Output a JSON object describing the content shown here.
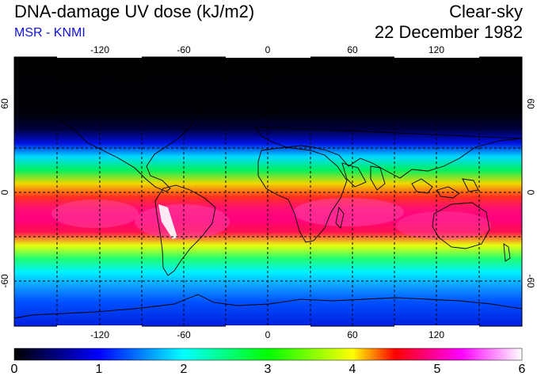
{
  "header": {
    "title": "DNA-damage UV dose (kJ/m2)",
    "source": "MSR - KNMI",
    "sky": "Clear-sky",
    "date": "22 December 1982"
  },
  "map": {
    "lon_ticks": [
      "-120",
      "-60",
      "0",
      "60",
      "120"
    ],
    "lat_ticks": [
      "60",
      "0",
      "-60"
    ]
  },
  "colorbar": {
    "labels": [
      "0",
      "1",
      "2",
      "3",
      "4",
      "5",
      "6"
    ],
    "min": 0,
    "max": 6,
    "stops": [
      "#000000",
      "#0000ff",
      "#00ffff",
      "#00ff00",
      "#ffff00",
      "#ff0000",
      "#ff00ff",
      "#ffffff"
    ]
  }
}
